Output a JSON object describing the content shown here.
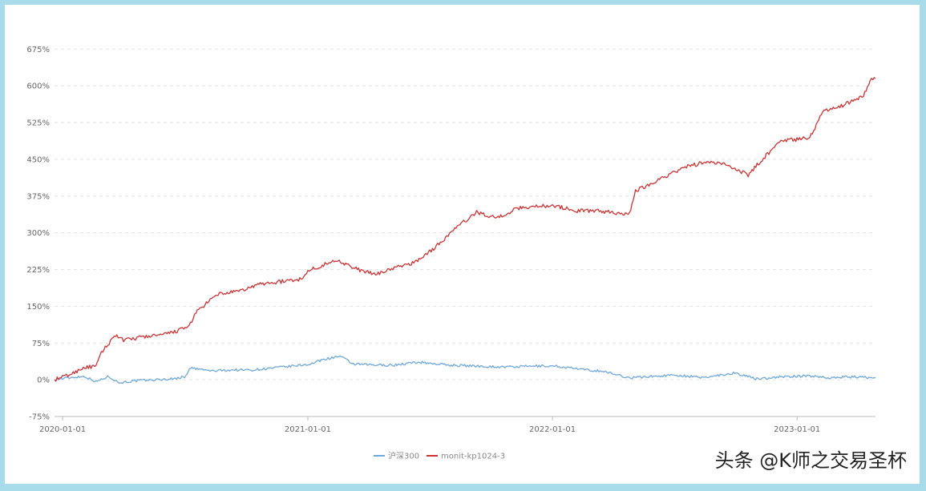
{
  "chart_data": {
    "type": "line",
    "title": "",
    "xlabel": "",
    "ylabel": "",
    "ylim": [
      -75,
      700
    ],
    "yticks": [
      -75,
      0,
      75,
      150,
      225,
      300,
      375,
      450,
      525,
      600,
      675
    ],
    "ytick_labels": [
      "-75%",
      "0%",
      "75%",
      "150%",
      "225%",
      "300%",
      "375%",
      "450%",
      "525%",
      "600%",
      "675%"
    ],
    "xlim": [
      "2019-12-20",
      "2023-04-28"
    ],
    "xticks": [
      "2020-01-01",
      "2021-01-01",
      "2022-01-01",
      "2023-01-01"
    ],
    "grid": "horizontal-dashed",
    "legend_placement": "bottom-center",
    "series": [
      {
        "name": "沪深300",
        "color": "#6fa8dc",
        "points": [
          [
            "2019-12-20",
            0
          ],
          [
            "2020-01-15",
            5
          ],
          [
            "2020-02-03",
            7
          ],
          [
            "2020-02-20",
            -4
          ],
          [
            "2020-03-10",
            7
          ],
          [
            "2020-03-25",
            -6
          ],
          [
            "2020-04-20",
            -2
          ],
          [
            "2020-05-20",
            0
          ],
          [
            "2020-06-15",
            2
          ],
          [
            "2020-07-01",
            6
          ],
          [
            "2020-07-10",
            24
          ],
          [
            "2020-08-10",
            18
          ],
          [
            "2020-09-10",
            20
          ],
          [
            "2020-10-10",
            20
          ],
          [
            "2020-11-10",
            24
          ],
          [
            "2020-12-10",
            28
          ],
          [
            "2021-01-05",
            32
          ],
          [
            "2021-01-25",
            42
          ],
          [
            "2021-02-18",
            48
          ],
          [
            "2021-03-10",
            32
          ],
          [
            "2021-04-10",
            30
          ],
          [
            "2021-05-10",
            30
          ],
          [
            "2021-06-15",
            36
          ],
          [
            "2021-07-30",
            30
          ],
          [
            "2021-09-10",
            28
          ],
          [
            "2021-10-20",
            26
          ],
          [
            "2021-12-10",
            28
          ],
          [
            "2022-01-05",
            28
          ],
          [
            "2022-02-20",
            20
          ],
          [
            "2022-03-15",
            18
          ],
          [
            "2022-04-26",
            4
          ],
          [
            "2022-05-20",
            6
          ],
          [
            "2022-07-05",
            10
          ],
          [
            "2022-08-10",
            4
          ],
          [
            "2022-09-30",
            14
          ],
          [
            "2022-10-31",
            2
          ],
          [
            "2022-12-10",
            6
          ],
          [
            "2023-01-20",
            8
          ],
          [
            "2023-02-20",
            4
          ],
          [
            "2023-03-20",
            6
          ],
          [
            "2023-04-28",
            4
          ]
        ]
      },
      {
        "name": "monit-kp1024-3",
        "color": "#cc3333",
        "points": [
          [
            "2019-12-20",
            0
          ],
          [
            "2020-01-15",
            12
          ],
          [
            "2020-02-01",
            25
          ],
          [
            "2020-02-20",
            27
          ],
          [
            "2020-02-28",
            55
          ],
          [
            "2020-03-20",
            92
          ],
          [
            "2020-04-01",
            80
          ],
          [
            "2020-05-01",
            88
          ],
          [
            "2020-06-01",
            92
          ],
          [
            "2020-06-20",
            100
          ],
          [
            "2020-07-06",
            107
          ],
          [
            "2020-07-20",
            140
          ],
          [
            "2020-08-20",
            175
          ],
          [
            "2020-09-20",
            180
          ],
          [
            "2020-10-20",
            195
          ],
          [
            "2020-11-20",
            200
          ],
          [
            "2020-12-20",
            205
          ],
          [
            "2021-01-05",
            225
          ],
          [
            "2021-02-15",
            245
          ],
          [
            "2021-03-10",
            228
          ],
          [
            "2021-04-10",
            215
          ],
          [
            "2021-05-10",
            228
          ],
          [
            "2021-06-10",
            240
          ],
          [
            "2021-07-10",
            270
          ],
          [
            "2021-08-10",
            310
          ],
          [
            "2021-09-10",
            342
          ],
          [
            "2021-10-10",
            330
          ],
          [
            "2021-11-10",
            350
          ],
          [
            "2021-12-10",
            355
          ],
          [
            "2022-01-05",
            355
          ],
          [
            "2022-02-05",
            345
          ],
          [
            "2022-03-10",
            345
          ],
          [
            "2022-04-10",
            340
          ],
          [
            "2022-04-26",
            340
          ],
          [
            "2022-05-05",
            385
          ],
          [
            "2022-06-10",
            410
          ],
          [
            "2022-07-20",
            435
          ],
          [
            "2022-08-20",
            445
          ],
          [
            "2022-09-20",
            438
          ],
          [
            "2022-10-20",
            418
          ],
          [
            "2022-11-10",
            450
          ],
          [
            "2022-12-10",
            490
          ],
          [
            "2022-12-30",
            490
          ],
          [
            "2023-01-20",
            495
          ],
          [
            "2023-02-10",
            550
          ],
          [
            "2023-03-10",
            560
          ],
          [
            "2023-04-10",
            580
          ],
          [
            "2023-04-20",
            612
          ],
          [
            "2023-04-28",
            615
          ]
        ]
      }
    ]
  },
  "watermark": "头条 @K师之交易圣杯"
}
